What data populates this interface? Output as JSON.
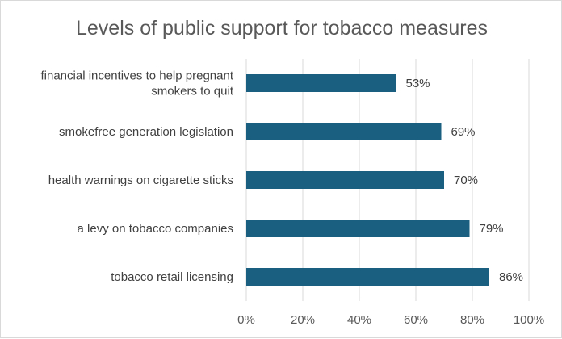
{
  "chart_data": {
    "type": "bar",
    "orientation": "horizontal",
    "title": "Levels of public support for tobacco measures",
    "categories": [
      "financial incentives to help pregnant smokers to quit",
      "smokefree generation legislation",
      "health warnings on cigarette sticks",
      "a levy on tobacco companies",
      "tobacco retail licensing"
    ],
    "category_lines": [
      [
        "financial incentives to help pregnant",
        "smokers to quit"
      ],
      [
        "smokefree generation legislation"
      ],
      [
        "health warnings on cigarette sticks"
      ],
      [
        "a levy on tobacco companies"
      ],
      [
        "tobacco retail licensing"
      ]
    ],
    "values": [
      53,
      69,
      70,
      79,
      86
    ],
    "data_labels": [
      "53%",
      "69%",
      "70%",
      "79%",
      "86%"
    ],
    "xlim": [
      0,
      100
    ],
    "x_ticks": [
      "0%",
      "20%",
      "40%",
      "60%",
      "80%",
      "100%"
    ],
    "x_tick_values": [
      0,
      20,
      40,
      60,
      80,
      100
    ],
    "grid": true,
    "bar_color": "#1a5f80",
    "xlabel": "",
    "ylabel": ""
  }
}
